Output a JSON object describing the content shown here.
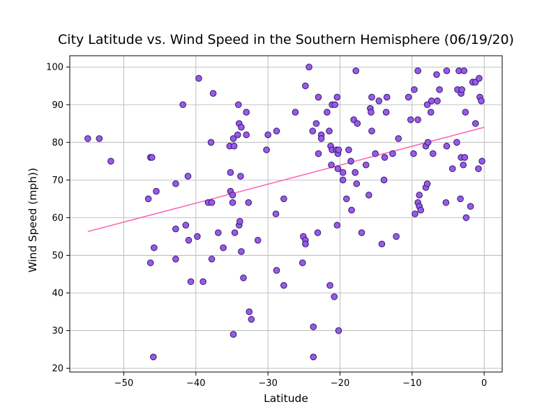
{
  "chart_data": {
    "type": "scatter",
    "title": "City Latitude vs. Wind Speed in the Southern Hemisphere (06/19/20)",
    "xlabel": "Latitude",
    "ylabel": "Wind Speed (mph))",
    "xlim": [
      -57.5,
      2.5
    ],
    "ylim": [
      19,
      103
    ],
    "xticks": [
      -50,
      -40,
      -30,
      -20,
      -10,
      0
    ],
    "yticks": [
      20,
      30,
      40,
      50,
      60,
      70,
      80,
      90,
      100
    ],
    "grid": true,
    "marker_fill": "#9b59e6",
    "marker_edge": "#2a1a6e",
    "regression_color": "#ff69b4",
    "regression": {
      "x": [
        -55,
        0
      ],
      "y": [
        56.3,
        84.0
      ]
    },
    "points": [
      [
        -55,
        81
      ],
      [
        -53.4,
        81
      ],
      [
        -51.8,
        75
      ],
      [
        -46.3,
        76
      ],
      [
        -46.1,
        76
      ],
      [
        -46.6,
        65
      ],
      [
        -46.3,
        48
      ],
      [
        -45.8,
        52
      ],
      [
        -45.9,
        23
      ],
      [
        -45.5,
        67
      ],
      [
        -42.8,
        69
      ],
      [
        -42.8,
        57
      ],
      [
        -42.8,
        49
      ],
      [
        -41.8,
        90
      ],
      [
        -41.4,
        58
      ],
      [
        -41.1,
        71
      ],
      [
        -41.0,
        54
      ],
      [
        -40.7,
        43
      ],
      [
        -39.8,
        55
      ],
      [
        -39.6,
        97
      ],
      [
        -39.0,
        43
      ],
      [
        -38.3,
        64
      ],
      [
        -37.8,
        64
      ],
      [
        -37.9,
        80
      ],
      [
        -37.8,
        49
      ],
      [
        -37.6,
        93
      ],
      [
        -36.9,
        56
      ],
      [
        -36.2,
        52
      ],
      [
        -35.3,
        79
      ],
      [
        -35.2,
        72
      ],
      [
        -35.2,
        67
      ],
      [
        -34.9,
        66
      ],
      [
        -34.9,
        64
      ],
      [
        -34.8,
        81
      ],
      [
        -34.8,
        29
      ],
      [
        -34.6,
        56
      ],
      [
        -34.7,
        79
      ],
      [
        -34.2,
        82
      ],
      [
        -34.1,
        90
      ],
      [
        -34.0,
        85
      ],
      [
        -34.0,
        58
      ],
      [
        -33.9,
        59
      ],
      [
        -33.8,
        71
      ],
      [
        -33.7,
        51
      ],
      [
        -33.7,
        84
      ],
      [
        -33.4,
        44
      ],
      [
        -33.0,
        82
      ],
      [
        -33.0,
        88
      ],
      [
        -32.7,
        64
      ],
      [
        -32.6,
        35
      ],
      [
        -32.3,
        33
      ],
      [
        -31.4,
        54
      ],
      [
        -30.2,
        78
      ],
      [
        -30.0,
        82
      ],
      [
        -28.9,
        61
      ],
      [
        -28.8,
        83
      ],
      [
        -28.8,
        46
      ],
      [
        -27.8,
        65
      ],
      [
        -27.8,
        42
      ],
      [
        -26.2,
        88
      ],
      [
        -25.2,
        48
      ],
      [
        -25.1,
        55
      ],
      [
        -24.8,
        54
      ],
      [
        -24.8,
        53
      ],
      [
        -24.8,
        95
      ],
      [
        -24.3,
        100
      ],
      [
        -23.8,
        83
      ],
      [
        -23.7,
        31
      ],
      [
        -23.7,
        23
      ],
      [
        -23.3,
        85
      ],
      [
        -23.1,
        56
      ],
      [
        -23.0,
        77
      ],
      [
        -23.0,
        92
      ],
      [
        -22.6,
        82
      ],
      [
        -22.6,
        81
      ],
      [
        -21.8,
        88
      ],
      [
        -21.5,
        83
      ],
      [
        -21.4,
        42
      ],
      [
        -21.3,
        79
      ],
      [
        -21.2,
        74
      ],
      [
        -21.1,
        78
      ],
      [
        -21.1,
        90
      ],
      [
        -20.8,
        39
      ],
      [
        -20.7,
        90
      ],
      [
        -20.5,
        78
      ],
      [
        -20.4,
        92
      ],
      [
        -20.4,
        58
      ],
      [
        -20.3,
        73
      ],
      [
        -20.2,
        30
      ],
      [
        -20.3,
        77
      ],
      [
        -20.2,
        78
      ],
      [
        -19.6,
        72
      ],
      [
        -19.6,
        70
      ],
      [
        -19.1,
        65
      ],
      [
        -18.8,
        78
      ],
      [
        -18.5,
        75
      ],
      [
        -18.4,
        62
      ],
      [
        -18.1,
        86
      ],
      [
        -17.9,
        72
      ],
      [
        -17.8,
        99
      ],
      [
        -17.7,
        69
      ],
      [
        -17.6,
        85
      ],
      [
        -17.0,
        56
      ],
      [
        -16.4,
        74
      ],
      [
        -16.0,
        66
      ],
      [
        -15.8,
        89
      ],
      [
        -15.7,
        88
      ],
      [
        -15.6,
        92
      ],
      [
        -15.6,
        83
      ],
      [
        -15.1,
        77
      ],
      [
        -14.6,
        91
      ],
      [
        -14.2,
        53
      ],
      [
        -13.9,
        70
      ],
      [
        -13.8,
        76
      ],
      [
        -13.6,
        88
      ],
      [
        -13.5,
        92
      ],
      [
        -12.7,
        77
      ],
      [
        -12.2,
        55
      ],
      [
        -11.9,
        81
      ],
      [
        -10.5,
        92
      ],
      [
        -10.2,
        86
      ],
      [
        -9.7,
        94
      ],
      [
        -9.8,
        77
      ],
      [
        -9.6,
        61
      ],
      [
        -9.2,
        99
      ],
      [
        -9.2,
        64
      ],
      [
        -9.2,
        86
      ],
      [
        -9.0,
        66
      ],
      [
        -9.0,
        63
      ],
      [
        -8.8,
        62
      ],
      [
        -8.1,
        79
      ],
      [
        -8.1,
        68
      ],
      [
        -7.9,
        90
      ],
      [
        -7.9,
        69
      ],
      [
        -7.8,
        80
      ],
      [
        -7.4,
        88
      ],
      [
        -7.3,
        91
      ],
      [
        -7.1,
        77
      ],
      [
        -6.6,
        98
      ],
      [
        -6.5,
        91
      ],
      [
        -6.2,
        94
      ],
      [
        -5.2,
        99
      ],
      [
        -5.2,
        79
      ],
      [
        -5.3,
        64
      ],
      [
        -4.4,
        73
      ],
      [
        -3.8,
        80
      ],
      [
        -3.7,
        94
      ],
      [
        -3.5,
        99
      ],
      [
        -3.3,
        65
      ],
      [
        -3.2,
        93
      ],
      [
        -3.2,
        76
      ],
      [
        -3.1,
        94
      ],
      [
        -2.9,
        74
      ],
      [
        -2.8,
        99
      ],
      [
        -2.7,
        76
      ],
      [
        -2.6,
        88
      ],
      [
        -2.5,
        60
      ],
      [
        -1.9,
        63
      ],
      [
        -1.6,
        96
      ],
      [
        -1.2,
        96
      ],
      [
        -1.2,
        85
      ],
      [
        -0.7,
        97
      ],
      [
        -0.8,
        73
      ],
      [
        -0.6,
        92
      ],
      [
        -0.4,
        91
      ],
      [
        -0.3,
        75
      ]
    ]
  }
}
